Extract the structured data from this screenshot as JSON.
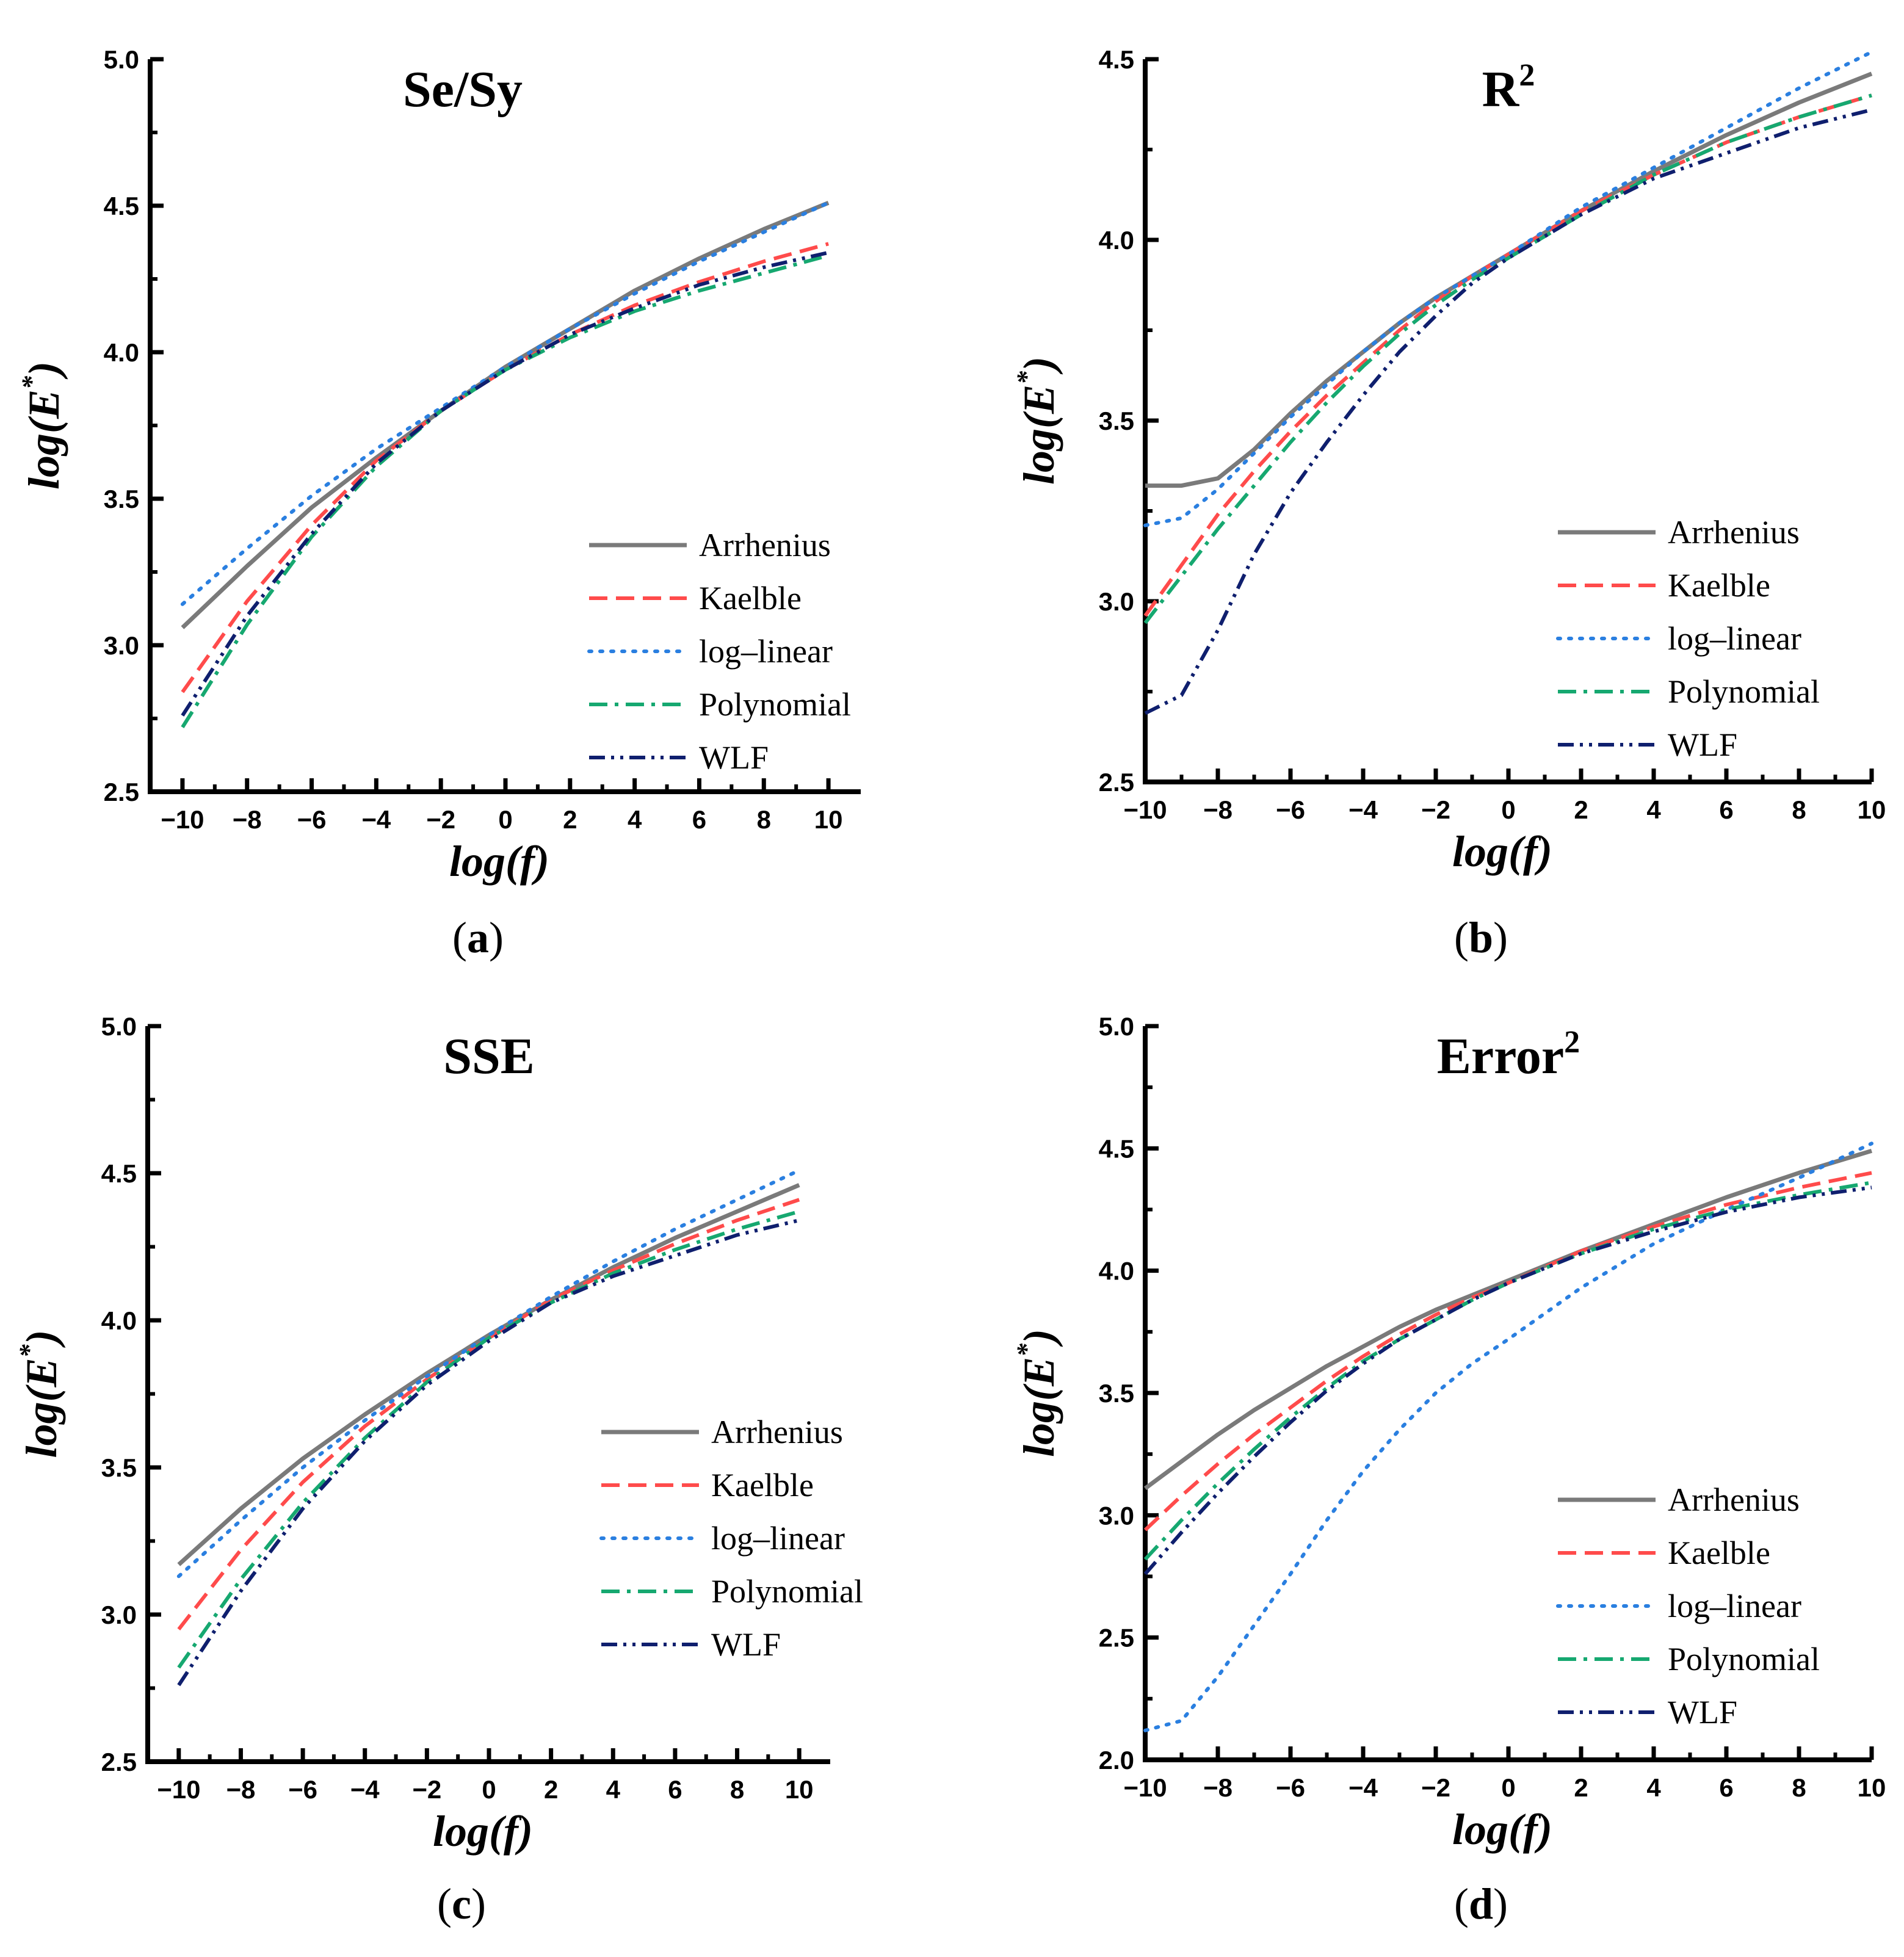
{
  "figure": {
    "series_colors": {
      "Arrhenius": "#7a7a7a",
      "Kaelble": "#ff4b4b",
      "log–linear": "#2a7fe0",
      "Polynomial": "#16a870",
      "WLF": "#0f1f6e"
    }
  },
  "chart_data": [
    {
      "type": "line",
      "title": "Se/Sy",
      "title_superscript": "",
      "caption_letter": "a",
      "xlabel": "log(f)",
      "ylabel": "log(E*)",
      "xlim": [
        -11,
        11
      ],
      "ylim": [
        2.5,
        5.0
      ],
      "xticks": [
        -10,
        -8,
        -6,
        -4,
        -2,
        0,
        2,
        4,
        6,
        8,
        10
      ],
      "xtick_labels": [
        "−10",
        "−8",
        "−6",
        "−4",
        "−2",
        "0",
        "2",
        "4",
        "6",
        "8",
        "10"
      ],
      "yticks": [
        2.5,
        3.0,
        3.5,
        4.0,
        4.5,
        5.0
      ],
      "ytick_labels": [
        "2.5",
        "3.0",
        "3.5",
        "4.0",
        "4.5",
        "5.0"
      ],
      "legend_position": "center-right",
      "x": [
        -10,
        -8,
        -6,
        -4,
        -2,
        0,
        2,
        4,
        6,
        8,
        10
      ],
      "series": [
        {
          "name": "Arrhenius",
          "style": "solid",
          "values": [
            3.06,
            3.27,
            3.47,
            3.64,
            3.8,
            3.95,
            4.08,
            4.21,
            4.32,
            4.42,
            4.51
          ]
        },
        {
          "name": "Kaelble",
          "style": "dash",
          "values": [
            2.84,
            3.15,
            3.41,
            3.63,
            3.8,
            3.94,
            4.06,
            4.16,
            4.24,
            4.31,
            4.37
          ]
        },
        {
          "name": "log–linear",
          "style": "dot",
          "values": [
            3.14,
            3.33,
            3.51,
            3.67,
            3.81,
            3.95,
            4.08,
            4.2,
            4.31,
            4.41,
            4.51
          ]
        },
        {
          "name": "Polynomial",
          "style": "dashdot",
          "values": [
            2.72,
            3.07,
            3.37,
            3.61,
            3.8,
            3.94,
            4.05,
            4.14,
            4.21,
            4.27,
            4.33
          ]
        },
        {
          "name": "WLF",
          "style": "dashdotdot",
          "values": [
            2.76,
            3.1,
            3.38,
            3.62,
            3.8,
            3.94,
            4.06,
            4.15,
            4.23,
            4.29,
            4.34
          ]
        }
      ]
    },
    {
      "type": "line",
      "title": "R",
      "title_superscript": "2",
      "caption_letter": "b",
      "xlabel": "log(f)",
      "ylabel": "log(E*)",
      "xlim": [
        -10,
        10
      ],
      "ylim": [
        2.5,
        4.5
      ],
      "xticks": [
        -10,
        -8,
        -6,
        -4,
        -2,
        0,
        2,
        4,
        6,
        8,
        10
      ],
      "xtick_labels": [
        "−10",
        "−8",
        "−6",
        "−4",
        "−2",
        "0",
        "2",
        "4",
        "6",
        "8",
        "10"
      ],
      "yticks": [
        2.5,
        3.0,
        3.5,
        4.0,
        4.5
      ],
      "ytick_labels": [
        "2.5",
        "3.0",
        "3.5",
        "4.0",
        "4.5"
      ],
      "legend_position": "center-right",
      "x": [
        -10,
        -9,
        -8,
        -7,
        -6,
        -5,
        -4,
        -3,
        -2,
        -1,
        0,
        2,
        4,
        6,
        8,
        10
      ],
      "series": [
        {
          "name": "Arrhenius",
          "style": "solid",
          "values": [
            3.32,
            3.32,
            3.34,
            3.42,
            3.52,
            3.61,
            3.69,
            3.77,
            3.84,
            3.9,
            3.96,
            4.08,
            4.19,
            4.29,
            4.38,
            4.46
          ]
        },
        {
          "name": "Kaelble",
          "style": "dash",
          "values": [
            2.96,
            3.1,
            3.24,
            3.36,
            3.47,
            3.57,
            3.66,
            3.75,
            3.83,
            3.9,
            3.96,
            4.08,
            4.18,
            4.27,
            4.34,
            4.4
          ]
        },
        {
          "name": "log–linear",
          "style": "dot",
          "values": [
            3.21,
            3.23,
            3.31,
            3.41,
            3.51,
            3.6,
            3.69,
            3.77,
            3.84,
            3.9,
            3.96,
            4.09,
            4.2,
            4.31,
            4.42,
            4.52
          ]
        },
        {
          "name": "Polynomial",
          "style": "dashdot",
          "values": [
            2.94,
            3.07,
            3.2,
            3.32,
            3.44,
            3.55,
            3.65,
            3.74,
            3.82,
            3.89,
            3.95,
            4.07,
            4.18,
            4.27,
            4.34,
            4.4
          ]
        },
        {
          "name": "WLF",
          "style": "dashdotdot",
          "values": [
            2.69,
            2.74,
            2.92,
            3.13,
            3.3,
            3.44,
            3.57,
            3.69,
            3.79,
            3.88,
            3.95,
            4.07,
            4.17,
            4.24,
            4.31,
            4.36
          ]
        }
      ]
    },
    {
      "type": "line",
      "title": "SSE",
      "title_superscript": "",
      "caption_letter": "c",
      "xlabel": "log(f)",
      "ylabel": "log(E*)",
      "xlim": [
        -11,
        11
      ],
      "ylim": [
        2.5,
        5.0
      ],
      "xticks": [
        -10,
        -8,
        -6,
        -4,
        -2,
        0,
        2,
        4,
        6,
        8,
        10
      ],
      "xtick_labels": [
        "−10",
        "−8",
        "−6",
        "−4",
        "−2",
        "0",
        "2",
        "4",
        "6",
        "8",
        "10"
      ],
      "yticks": [
        2.5,
        3.0,
        3.5,
        4.0,
        4.5,
        5.0
      ],
      "ytick_labels": [
        "2.5",
        "3.0",
        "3.5",
        "4.0",
        "4.5",
        "5.0"
      ],
      "legend_position": "center-right",
      "x": [
        -10,
        -8,
        -6,
        -4,
        -2,
        0,
        2,
        4,
        6,
        8,
        10
      ],
      "series": [
        {
          "name": "Arrhenius",
          "style": "solid",
          "values": [
            3.17,
            3.36,
            3.53,
            3.68,
            3.82,
            3.95,
            4.07,
            4.18,
            4.28,
            4.37,
            4.46
          ]
        },
        {
          "name": "Kaelble",
          "style": "dash",
          "values": [
            2.95,
            3.22,
            3.45,
            3.64,
            3.8,
            3.94,
            4.07,
            4.17,
            4.26,
            4.34,
            4.41
          ]
        },
        {
          "name": "log–linear",
          "style": "dot",
          "values": [
            3.13,
            3.32,
            3.5,
            3.66,
            3.81,
            3.95,
            4.08,
            4.2,
            4.31,
            4.41,
            4.51
          ]
        },
        {
          "name": "Polynomial",
          "style": "dashdot",
          "values": [
            2.82,
            3.12,
            3.38,
            3.6,
            3.79,
            3.94,
            4.06,
            4.16,
            4.24,
            4.31,
            4.37
          ]
        },
        {
          "name": "WLF",
          "style": "dashdotdot",
          "values": [
            2.76,
            3.08,
            3.36,
            3.59,
            3.78,
            3.93,
            4.06,
            4.15,
            4.22,
            4.29,
            4.34
          ]
        }
      ]
    },
    {
      "type": "line",
      "title": "Error",
      "title_superscript": "2",
      "caption_letter": "d",
      "xlabel": "log(f)",
      "ylabel": "log(E*)",
      "xlim": [
        -10,
        10
      ],
      "ylim": [
        2.0,
        5.0
      ],
      "xticks": [
        -10,
        -8,
        -6,
        -4,
        -2,
        0,
        2,
        4,
        6,
        8,
        10
      ],
      "xtick_labels": [
        "−10",
        "−8",
        "−6",
        "−4",
        "−2",
        "0",
        "2",
        "4",
        "6",
        "8",
        "10"
      ],
      "yticks": [
        2.0,
        2.5,
        3.0,
        3.5,
        4.0,
        4.5,
        5.0
      ],
      "ytick_labels": [
        "2.0",
        "2.5",
        "3.0",
        "3.5",
        "4.0",
        "4.5",
        "5.0"
      ],
      "legend_position": "bottom-right",
      "x": [
        -10,
        -9,
        -8,
        -7,
        -6,
        -5,
        -4,
        -3,
        -2,
        -1,
        0,
        2,
        4,
        6,
        8,
        10
      ],
      "series": [
        {
          "name": "Arrhenius",
          "style": "solid",
          "values": [
            3.11,
            3.22,
            3.33,
            3.43,
            3.52,
            3.61,
            3.69,
            3.77,
            3.84,
            3.9,
            3.96,
            4.08,
            4.19,
            4.3,
            4.4,
            4.49
          ]
        },
        {
          "name": "Kaelble",
          "style": "dash",
          "values": [
            2.94,
            3.08,
            3.21,
            3.33,
            3.44,
            3.55,
            3.65,
            3.74,
            3.82,
            3.89,
            3.95,
            4.08,
            4.18,
            4.27,
            4.34,
            4.4
          ]
        },
        {
          "name": "log–linear",
          "style": "dot",
          "values": [
            2.12,
            2.16,
            2.34,
            2.55,
            2.76,
            2.98,
            3.18,
            3.35,
            3.5,
            3.62,
            3.72,
            3.93,
            4.11,
            4.25,
            4.38,
            4.52
          ]
        },
        {
          "name": "Polynomial",
          "style": "dashdot",
          "values": [
            2.82,
            2.98,
            3.13,
            3.27,
            3.4,
            3.52,
            3.63,
            3.72,
            3.8,
            3.88,
            3.95,
            4.07,
            4.17,
            4.25,
            4.31,
            4.36
          ]
        },
        {
          "name": "WLF",
          "style": "dashdotdot",
          "values": [
            2.76,
            2.93,
            3.09,
            3.24,
            3.38,
            3.51,
            3.62,
            3.72,
            3.8,
            3.88,
            3.95,
            4.07,
            4.16,
            4.24,
            4.3,
            4.34
          ]
        }
      ]
    }
  ]
}
